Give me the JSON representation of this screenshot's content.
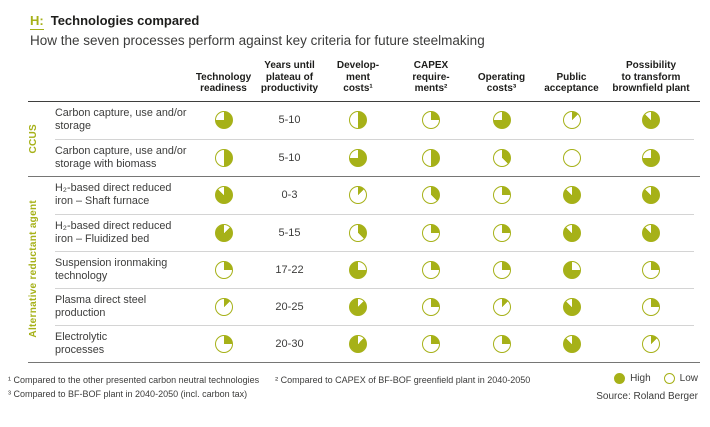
{
  "header": {
    "tag": "H:",
    "title": "Technologies compared",
    "subtitle": "How the seven processes perform against key criteria for future steelmaking"
  },
  "colors": {
    "accent": "#a6b118",
    "text": "#3c3c3b"
  },
  "columns": [
    {
      "id": "readiness",
      "lines": [
        "Technology",
        "readiness"
      ]
    },
    {
      "id": "years",
      "lines": [
        "Years until",
        "plateau of",
        "productivity"
      ]
    },
    {
      "id": "dev",
      "lines": [
        "Develop-",
        "ment",
        "costs¹"
      ]
    },
    {
      "id": "capex",
      "lines": [
        "CAPEX",
        "require-",
        "ments²"
      ]
    },
    {
      "id": "op",
      "lines": [
        "Operating",
        "costs³"
      ]
    },
    {
      "id": "public",
      "lines": [
        "Public",
        "acceptance"
      ]
    },
    {
      "id": "brownfield",
      "lines": [
        "Possibility",
        "to transform",
        "brownfield plant"
      ]
    }
  ],
  "groups": [
    {
      "label": "CCUS",
      "rows": [
        {
          "name_lines": [
            "Carbon capture, use and/or",
            "storage"
          ],
          "years": "5-10",
          "pies": {
            "readiness": {
              "v": 0.75
            },
            "dev": {
              "v": 0.5
            },
            "capex": {
              "v": 0.25
            },
            "op": {
              "v": 0.75
            },
            "public": {
              "v": 0.125
            },
            "brownfield": {
              "v": 0.875
            }
          }
        },
        {
          "name_lines": [
            "Carbon capture, use and/or",
            "storage with biomass"
          ],
          "years": "5-10",
          "pies": {
            "readiness": {
              "v": 0.5
            },
            "dev": {
              "v": 0.75
            },
            "capex": {
              "v": 0.5
            },
            "op": {
              "v": 0.375
            },
            "public": {
              "v": 0
            },
            "brownfield": {
              "v": 0.75
            }
          }
        }
      ]
    },
    {
      "label": "Alternative reductant agent",
      "rows": [
        {
          "name_lines": [
            "H₂-based direct reduced",
            "iron – Shaft furnace"
          ],
          "years": "0-3",
          "pies": {
            "readiness": {
              "v": 0.875
            },
            "dev": {
              "v": 0.125
            },
            "capex": {
              "v": 0.375
            },
            "op": {
              "v": 0.25
            },
            "public": {
              "v": 0.875
            },
            "brownfield": {
              "v": 0.875
            }
          }
        },
        {
          "name_lines": [
            "H₂-based direct reduced",
            "iron – Fluidized bed"
          ],
          "years": "5-15",
          "pies": {
            "readiness": {
              "v": 0.875,
              "rot": 45
            },
            "dev": {
              "v": 0.375
            },
            "capex": {
              "v": 0.25
            },
            "op": {
              "v": 0.25
            },
            "public": {
              "v": 0.875
            },
            "brownfield": {
              "v": 0.875
            }
          }
        },
        {
          "name_lines": [
            "Suspension ironmaking",
            "technology"
          ],
          "years": "17-22",
          "pies": {
            "readiness": {
              "v": 0.25
            },
            "dev": {
              "v": 0.75,
              "rot": 90
            },
            "capex": {
              "v": 0.25
            },
            "op": {
              "v": 0.25
            },
            "public": {
              "v": 0.75,
              "rot": 90
            },
            "brownfield": {
              "v": 0.25
            }
          }
        },
        {
          "name_lines": [
            "Plasma direct steel",
            "production"
          ],
          "years": "20-25",
          "pies": {
            "readiness": {
              "v": 0.125
            },
            "dev": {
              "v": 0.875,
              "rot": 45
            },
            "capex": {
              "v": 0.25
            },
            "op": {
              "v": 0.125
            },
            "public": {
              "v": 0.875
            },
            "brownfield": {
              "v": 0.25
            }
          }
        },
        {
          "name_lines": [
            "Electrolytic",
            "processes"
          ],
          "years": "20-30",
          "pies": {
            "readiness": {
              "v": 0.25
            },
            "dev": {
              "v": 0.875,
              "rot": 45
            },
            "capex": {
              "v": 0.25
            },
            "op": {
              "v": 0.25
            },
            "public": {
              "v": 0.875
            },
            "brownfield": {
              "v": 0.125
            }
          }
        }
      ]
    }
  ],
  "footnotes": [
    "¹ Compared to the other presented carbon neutral technologies",
    "² Compared to CAPEX of BF-BOF greenfield plant in 2040-2050",
    "³ Compared to BF-BOF plant in 2040-2050 (incl. carbon tax)"
  ],
  "legend": {
    "high": "High",
    "low": "Low"
  },
  "source": "Source: Roland Berger",
  "chart_data": {
    "type": "table",
    "title": "Technologies compared",
    "subtitle": "How the seven processes perform against key criteria for future steelmaking",
    "value_scale": "pie fill fraction, 0 = Low, 1 = High",
    "criteria": [
      "Technology readiness",
      "Years until plateau of productivity",
      "Development costs",
      "CAPEX requirements",
      "Operating costs",
      "Public acceptance",
      "Possibility to transform brownfield plant"
    ],
    "rows": [
      {
        "group": "CCUS",
        "process": "Carbon capture, use and/or storage",
        "technology_readiness": 0.75,
        "years_until_plateau": "5-10",
        "development_costs": 0.5,
        "capex_requirements": 0.25,
        "operating_costs": 0.75,
        "public_acceptance": 0.125,
        "brownfield_transform": 0.875
      },
      {
        "group": "CCUS",
        "process": "Carbon capture, use and/or storage with biomass",
        "technology_readiness": 0.5,
        "years_until_plateau": "5-10",
        "development_costs": 0.75,
        "capex_requirements": 0.5,
        "operating_costs": 0.375,
        "public_acceptance": 0,
        "brownfield_transform": 0.75
      },
      {
        "group": "Alternative reductant agent",
        "process": "H₂-based direct reduced iron – Shaft furnace",
        "technology_readiness": 0.875,
        "years_until_plateau": "0-3",
        "development_costs": 0.125,
        "capex_requirements": 0.375,
        "operating_costs": 0.25,
        "public_acceptance": 0.875,
        "brownfield_transform": 0.875
      },
      {
        "group": "Alternative reductant agent",
        "process": "H₂-based direct reduced iron – Fluidized bed",
        "technology_readiness": 0.875,
        "years_until_plateau": "5-15",
        "development_costs": 0.375,
        "capex_requirements": 0.25,
        "operating_costs": 0.25,
        "public_acceptance": 0.875,
        "brownfield_transform": 0.875
      },
      {
        "group": "Alternative reductant agent",
        "process": "Suspension ironmaking technology",
        "technology_readiness": 0.25,
        "years_until_plateau": "17-22",
        "development_costs": 0.75,
        "capex_requirements": 0.25,
        "operating_costs": 0.25,
        "public_acceptance": 0.75,
        "brownfield_transform": 0.25
      },
      {
        "group": "Alternative reductant agent",
        "process": "Plasma direct steel production",
        "technology_readiness": 0.125,
        "years_until_plateau": "20-25",
        "development_costs": 0.875,
        "capex_requirements": 0.25,
        "operating_costs": 0.125,
        "public_acceptance": 0.875,
        "brownfield_transform": 0.25
      },
      {
        "group": "Alternative reductant agent",
        "process": "Electrolytic processes",
        "technology_readiness": 0.25,
        "years_until_plateau": "20-30",
        "development_costs": 0.875,
        "capex_requirements": 0.25,
        "operating_costs": 0.25,
        "public_acceptance": 0.875,
        "brownfield_transform": 0.125
      }
    ],
    "legend": {
      "filled": "High",
      "empty": "Low"
    }
  }
}
